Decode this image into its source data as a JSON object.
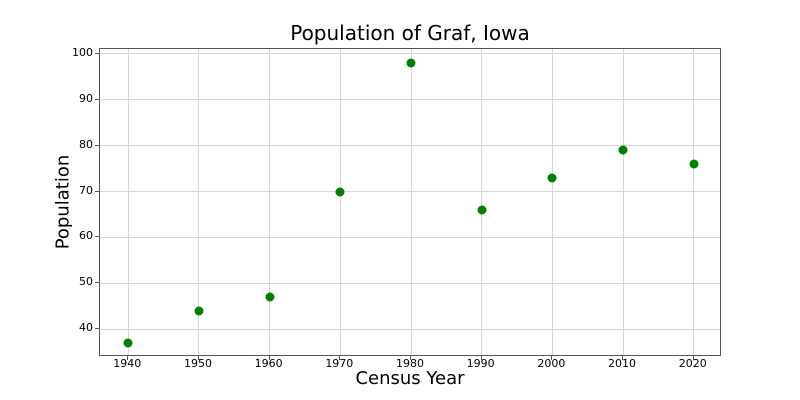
{
  "chart_data": {
    "type": "scatter",
    "title": "Population of Graf, Iowa",
    "xlabel": "Census Year",
    "ylabel": "Population",
    "x": [
      1940,
      1950,
      1960,
      1970,
      1980,
      1990,
      2000,
      2010,
      2020
    ],
    "y": [
      37,
      44,
      47,
      70,
      98,
      66,
      73,
      79,
      76
    ],
    "xticks": [
      1940,
      1950,
      1960,
      1970,
      1980,
      1990,
      2000,
      2010,
      2020
    ],
    "yticks": [
      40,
      50,
      60,
      70,
      80,
      90,
      100
    ],
    "xlim": [
      1936,
      2024
    ],
    "ylim": [
      34,
      101
    ],
    "grid": true,
    "legend": false,
    "marker_color": "#008000",
    "grid_color": "#d8d8d8",
    "spine_color": "#555555",
    "tick_color": "#555555",
    "background": "#ffffff"
  }
}
